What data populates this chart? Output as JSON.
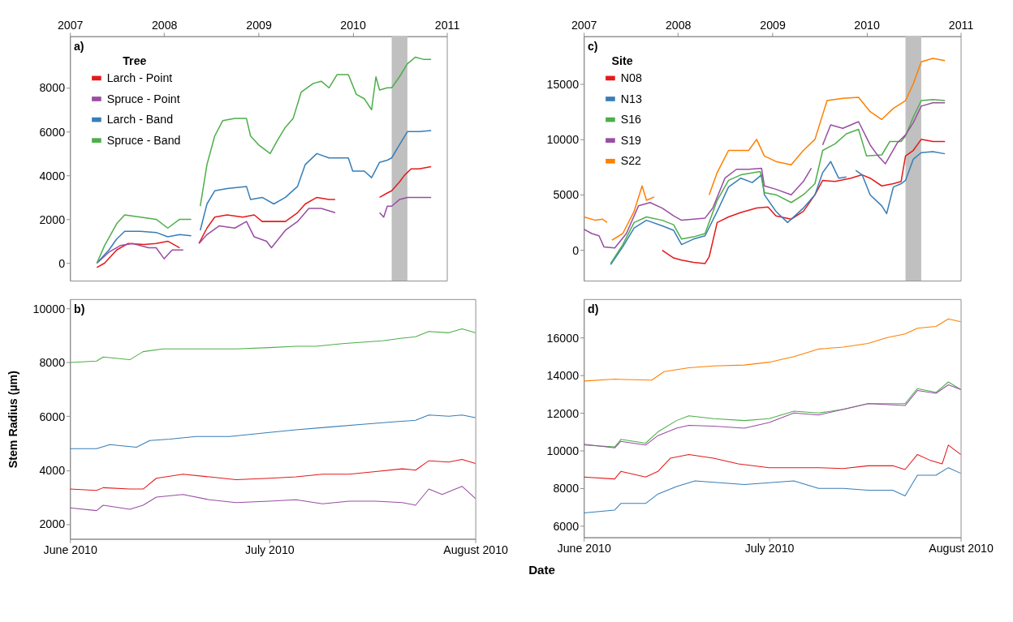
{
  "chart_data": [
    {
      "type": "line",
      "annotations": [
        "a)"
      ],
      "legend_title": "Tree",
      "legend": "top left",
      "grid": false,
      "xlim": [
        "2007",
        "2011"
      ],
      "xticks": [
        "2007",
        "2008",
        "2009",
        "2010",
        "2011"
      ],
      "ylim": [
        -800,
        10350
      ],
      "yticks": [
        0,
        2000,
        4000,
        6000,
        8000
      ],
      "bands": [
        {
          "axis": "x",
          "from": "2010-06-01",
          "to": "2010-08-01",
          "color": "#c0c0c0"
        }
      ],
      "series": [
        {
          "name": "Larch - Point",
          "color": "#e41a1c",
          "x": [
            "2007-04-15",
            "2007-05-15",
            "2007-07-01",
            "2007-08-15",
            "2007-10-15",
            "2007-12-01",
            "2008-01-15",
            "2008-03-01",
            "2008-04-01",
            "2008-05-15",
            "2008-06-15",
            "2008-07-15",
            "2008-09-01",
            "2008-11-01",
            "2008-12-15",
            "2009-01-15",
            "2009-03-01",
            "2009-04-15",
            "2009-06-01",
            "2009-07-01",
            "2009-08-15",
            "2009-10-01",
            "2009-10-25",
            "2010-01-01",
            "2010-04-15",
            "2010-05-15",
            "2010-06-01",
            "2010-07-01",
            "2010-07-20",
            "2010-08-15",
            "2010-09-15",
            "2010-11-01"
          ],
          "values": [
            -200,
            0,
            600,
            900,
            850,
            900,
            1000,
            700,
            null,
            900,
            1600,
            2100,
            2200,
            2100,
            2200,
            1900,
            1900,
            1900,
            2300,
            2700,
            3000,
            2900,
            2900,
            null,
            3000,
            3200,
            3300,
            3700,
            4000,
            4300,
            4300,
            4400
          ]
        },
        {
          "name": "Spruce - Point",
          "color": "#984ea3",
          "x": [
            "2007-04-15",
            "2007-06-01",
            "2007-07-15",
            "2007-09-01",
            "2007-11-01",
            "2007-12-01",
            "2008-01-01",
            "2008-02-01",
            "2008-03-15",
            "2008-04-01",
            "2008-05-15",
            "2008-06-15",
            "2008-08-01",
            "2008-10-01",
            "2008-11-15",
            "2008-12-15",
            "2009-02-01",
            "2009-02-20",
            "2009-04-15",
            "2009-06-01",
            "2009-07-15",
            "2009-09-01",
            "2009-10-25",
            "2010-01-01",
            "2010-04-15",
            "2010-05-01",
            "2010-05-15",
            "2010-06-01",
            "2010-07-01",
            "2010-08-01",
            "2010-09-15",
            "2010-11-01"
          ],
          "values": [
            0,
            500,
            800,
            900,
            700,
            700,
            200,
            600,
            600,
            null,
            900,
            1300,
            1700,
            1600,
            1900,
            1200,
            1000,
            700,
            1500,
            1900,
            2500,
            2500,
            2300,
            null,
            2300,
            2100,
            2600,
            2600,
            2900,
            3000,
            3000,
            3000
          ]
        },
        {
          "name": "Larch - Band",
          "color": "#377eb8",
          "x": [
            "2007-04-15",
            "2007-06-01",
            "2007-07-01",
            "2007-08-01",
            "2007-10-01",
            "2007-12-01",
            "2008-01-15",
            "2008-03-01",
            "2008-04-15",
            "2008-05-01",
            "2008-05-20",
            "2008-06-15",
            "2008-07-15",
            "2008-09-01",
            "2008-11-15",
            "2008-12-01",
            "2009-01-15",
            "2009-03-01",
            "2009-04-15",
            "2009-06-01",
            "2009-07-01",
            "2009-08-15",
            "2009-10-01",
            "2009-12-15",
            "2010-01-01",
            "2010-02-15",
            "2010-03-15",
            "2010-04-15",
            "2010-05-15",
            "2010-06-01",
            "2010-07-01",
            "2010-08-01",
            "2010-09-15",
            "2010-11-01"
          ],
          "values": [
            0,
            600,
            1100,
            1450,
            1450,
            1400,
            1200,
            1300,
            1250,
            null,
            1500,
            2700,
            3300,
            3400,
            3500,
            2900,
            3000,
            2700,
            3000,
            3500,
            4500,
            5000,
            4800,
            4800,
            4200,
            4200,
            3900,
            4600,
            4700,
            4800,
            5400,
            6000,
            6000,
            6050
          ]
        },
        {
          "name": "Spruce - Band",
          "color": "#4daf4a",
          "x": [
            "2007-04-15",
            "2007-05-15",
            "2007-07-01",
            "2007-08-01",
            "2007-10-01",
            "2007-12-01",
            "2008-01-15",
            "2008-03-01",
            "2008-04-15",
            "2008-05-01",
            "2008-05-20",
            "2008-06-15",
            "2008-07-15",
            "2008-08-15",
            "2008-10-01",
            "2008-11-15",
            "2008-12-01",
            "2009-01-01",
            "2009-02-15",
            "2009-03-15",
            "2009-04-15",
            "2009-05-15",
            "2009-06-15",
            "2009-08-01",
            "2009-09-01",
            "2009-10-01",
            "2009-11-01",
            "2009-12-15",
            "2010-01-15",
            "2010-02-15",
            "2010-03-15",
            "2010-04-01",
            "2010-04-15",
            "2010-05-15",
            "2010-06-01",
            "2010-07-01",
            "2010-08-01",
            "2010-09-01",
            "2010-10-01",
            "2010-11-01"
          ],
          "values": [
            0,
            800,
            1800,
            2200,
            2100,
            2000,
            1600,
            2000,
            2000,
            null,
            2600,
            4500,
            5800,
            6500,
            6600,
            6600,
            5800,
            5400,
            5000,
            5600,
            6200,
            6600,
            7800,
            8200,
            8300,
            8000,
            8600,
            8600,
            7700,
            7500,
            7000,
            8500,
            7900,
            8000,
            8000,
            8500,
            9100,
            9400,
            9300,
            9300
          ]
        }
      ]
    },
    {
      "type": "line",
      "annotations": [
        "b)"
      ],
      "ylabel": "Stem Radius (µm)",
      "grid": false,
      "xlim": [
        "2010-06-01",
        "2010-08-01"
      ],
      "xticks": [
        {
          "value": "2010-06-01",
          "label": "June 2010"
        },
        {
          "value": "2010-07-01",
          "label": "July 2010"
        },
        {
          "value": "2010-08-01",
          "label": "August 2010"
        }
      ],
      "ylim": [
        1450,
        10350
      ],
      "yticks": [
        2000,
        4000,
        6000,
        8000,
        10000
      ],
      "series": [
        {
          "color": "#e41a1c",
          "x": [
            "2010-06-01",
            "2010-06-05",
            "2010-06-06",
            "2010-06-10",
            "2010-06-12",
            "2010-06-14",
            "2010-06-18",
            "2010-06-22",
            "2010-06-26",
            "2010-07-01",
            "2010-07-05",
            "2010-07-09",
            "2010-07-13",
            "2010-07-17",
            "2010-07-21",
            "2010-07-23",
            "2010-07-25",
            "2010-07-28",
            "2010-07-30",
            "2010-08-01"
          ],
          "values": [
            3300,
            3250,
            3350,
            3300,
            3300,
            3700,
            3850,
            3750,
            3650,
            3700,
            3750,
            3850,
            3850,
            3950,
            4050,
            4000,
            4350,
            4300,
            4400,
            4250
          ]
        },
        {
          "color": "#984ea3",
          "x": [
            "2010-06-01",
            "2010-06-05",
            "2010-06-06",
            "2010-06-10",
            "2010-06-12",
            "2010-06-14",
            "2010-06-18",
            "2010-06-22",
            "2010-06-26",
            "2010-07-01",
            "2010-07-05",
            "2010-07-09",
            "2010-07-13",
            "2010-07-17",
            "2010-07-21",
            "2010-07-23",
            "2010-07-25",
            "2010-07-27",
            "2010-07-29",
            "2010-07-30",
            "2010-08-01"
          ],
          "values": [
            2600,
            2500,
            2700,
            2550,
            2700,
            3000,
            3100,
            2900,
            2800,
            2850,
            2900,
            2750,
            2850,
            2850,
            2800,
            2700,
            3300,
            3100,
            3300,
            3400,
            2950
          ]
        },
        {
          "color": "#377eb8",
          "x": [
            "2010-06-01",
            "2010-06-05",
            "2010-06-07",
            "2010-06-11",
            "2010-06-13",
            "2010-06-16",
            "2010-06-20",
            "2010-06-25",
            "2010-07-01",
            "2010-07-05",
            "2010-07-10",
            "2010-07-15",
            "2010-07-20",
            "2010-07-23",
            "2010-07-25",
            "2010-07-28",
            "2010-07-30",
            "2010-08-01"
          ],
          "values": [
            4800,
            4800,
            4950,
            4850,
            5100,
            5150,
            5250,
            5250,
            5400,
            5500,
            5600,
            5700,
            5800,
            5850,
            6050,
            6000,
            6050,
            5950
          ]
        },
        {
          "color": "#4daf4a",
          "x": [
            "2010-06-01",
            "2010-06-05",
            "2010-06-06",
            "2010-06-10",
            "2010-06-12",
            "2010-06-15",
            "2010-06-18",
            "2010-06-22",
            "2010-06-26",
            "2010-07-01",
            "2010-07-05",
            "2010-07-08",
            "2010-07-12",
            "2010-07-15",
            "2010-07-18",
            "2010-07-21",
            "2010-07-23",
            "2010-07-25",
            "2010-07-28",
            "2010-07-30",
            "2010-08-01"
          ],
          "values": [
            8000,
            8050,
            8200,
            8100,
            8400,
            8500,
            8500,
            8500,
            8500,
            8550,
            8600,
            8600,
            8700,
            8750,
            8800,
            8900,
            8950,
            9150,
            9100,
            9250,
            9100
          ]
        }
      ]
    },
    {
      "type": "line",
      "annotations": [
        "c)"
      ],
      "legend_title": "Site",
      "legend": "top left",
      "grid": false,
      "xlim": [
        "2007",
        "2011"
      ],
      "xticks": [
        "2007",
        "2008",
        "2009",
        "2010",
        "2011"
      ],
      "ylim": [
        -2750,
        19300
      ],
      "yticks": [
        0,
        5000,
        10000,
        15000
      ],
      "bands": [
        {
          "axis": "x",
          "from": "2010-06-01",
          "to": "2010-08-01",
          "color": "#c0c0c0"
        }
      ],
      "series": [
        {
          "name": "N08",
          "color": "#e41a1c",
          "x": [
            "2007-11-01",
            "2007-12-15",
            "2008-01-15",
            "2008-03-01",
            "2008-04-15",
            "2008-05-01",
            "2008-06-01",
            "2008-07-15",
            "2008-09-01",
            "2008-11-01",
            "2008-12-15",
            "2009-01-15",
            "2009-03-15",
            "2009-05-01",
            "2009-06-15",
            "2009-07-15",
            "2009-09-01",
            "2009-11-01",
            "2009-12-15",
            "2010-01-15",
            "2010-03-01",
            "2010-04-15",
            "2010-05-15",
            "2010-06-01",
            "2010-07-01",
            "2010-08-01",
            "2010-09-15",
            "2010-11-01"
          ],
          "values": [
            0,
            -700,
            -900,
            -1100,
            -1200,
            -600,
            2500,
            3000,
            3400,
            3800,
            3900,
            3100,
            2800,
            3500,
            5000,
            6300,
            6200,
            6500,
            6800,
            6500,
            5800,
            6000,
            6200,
            8500,
            9000,
            10000,
            9800,
            9800
          ]
        },
        {
          "name": "N13",
          "color": "#377eb8",
          "x": [
            "2007-04-15",
            "2007-06-01",
            "2007-07-15",
            "2007-09-01",
            "2007-11-01",
            "2007-12-15",
            "2008-01-15",
            "2008-03-01",
            "2008-04-15",
            "2008-06-01",
            "2008-07-15",
            "2008-09-01",
            "2008-10-15",
            "2008-11-20",
            "2008-12-01",
            "2009-01-15",
            "2009-03-01",
            "2009-05-01",
            "2009-06-15",
            "2009-07-15",
            "2009-08-15",
            "2009-09-15",
            "2009-10-15",
            "2009-11-01",
            "2009-11-20",
            "2009-12-15",
            "2010-01-15",
            "2010-03-01",
            "2010-03-20",
            "2010-04-15",
            "2010-05-15",
            "2010-06-01",
            "2010-07-01",
            "2010-08-01",
            "2010-09-15",
            "2010-11-01"
          ],
          "values": [
            -1300,
            300,
            2000,
            2700,
            2200,
            1800,
            500,
            1000,
            1300,
            3500,
            5700,
            6500,
            6100,
            6800,
            5000,
            3500,
            2500,
            3800,
            5000,
            7000,
            8000,
            6500,
            6600,
            null,
            7200,
            6800,
            5000,
            4000,
            3300,
            5700,
            6000,
            6300,
            8200,
            8800,
            8900,
            8700
          ]
        },
        {
          "name": "S16",
          "color": "#4daf4a",
          "x": [
            "2007-04-15",
            "2007-06-01",
            "2007-07-15",
            "2007-09-01",
            "2007-11-01",
            "2007-12-15",
            "2008-01-15",
            "2008-03-01",
            "2008-04-15",
            "2008-06-01",
            "2008-07-15",
            "2008-09-01",
            "2008-11-15",
            "2008-12-01",
            "2009-01-15",
            "2009-03-15",
            "2009-05-01",
            "2009-06-15",
            "2009-07-15",
            "2009-09-01",
            "2009-10-15",
            "2009-12-01",
            "2010-01-01",
            "2010-03-01",
            "2010-04-01",
            "2010-05-15",
            "2010-06-01",
            "2010-07-01",
            "2010-08-01",
            "2010-09-15",
            "2010-11-01"
          ],
          "values": [
            -1200,
            500,
            2500,
            3000,
            2700,
            2300,
            1000,
            1200,
            1500,
            4500,
            6300,
            6800,
            7100,
            5200,
            5000,
            4300,
            5000,
            6000,
            9000,
            9600,
            10500,
            10900,
            8500,
            8600,
            9800,
            9800,
            10300,
            12000,
            13500,
            13600,
            13500
          ]
        },
        {
          "name": "S19",
          "color": "#984ea3",
          "x": [
            "2007-01-01",
            "2007-02-01",
            "2007-03-01",
            "2007-03-20",
            "2007-05-01",
            "2007-06-15",
            "2007-08-01",
            "2007-09-15",
            "2007-11-01",
            "2007-12-15",
            "2008-01-15",
            "2008-03-01",
            "2008-04-15",
            "2008-05-15",
            "2008-07-01",
            "2008-08-15",
            "2008-10-01",
            "2008-11-20",
            "2008-12-01",
            "2009-01-15",
            "2009-03-15",
            "2009-05-01",
            "2009-06-01",
            "2009-06-15",
            "2009-07-15",
            "2009-08-15",
            "2009-10-01",
            "2009-12-01",
            "2010-01-15",
            "2010-02-15",
            "2010-03-15",
            "2010-05-01",
            "2010-06-01",
            "2010-07-01",
            "2010-08-01",
            "2010-09-15",
            "2010-11-01"
          ],
          "values": [
            1900,
            1500,
            1300,
            300,
            200,
            1500,
            4000,
            4300,
            3800,
            3100,
            2700,
            2800,
            2900,
            3800,
            6500,
            7300,
            7300,
            7400,
            5800,
            5500,
            5000,
            6200,
            7400,
            null,
            9500,
            11300,
            11000,
            11600,
            9500,
            8500,
            7800,
            9700,
            10400,
            11500,
            13000,
            13300,
            13300
          ]
        },
        {
          "name": "S22",
          "color": "#ff7f00",
          "x": [
            "2007-01-01",
            "2007-02-15",
            "2007-03-15",
            "2007-04-01",
            "2007-04-15",
            "2007-04-20",
            "2007-06-01",
            "2007-07-15",
            "2007-08-15",
            "2007-09-01",
            "2007-10-01",
            "2007-11-01",
            "2008-05-01",
            "2008-06-01",
            "2008-07-15",
            "2008-09-01",
            "2008-10-01",
            "2008-11-01",
            "2008-12-01",
            "2009-01-15",
            "2009-03-15",
            "2009-05-01",
            "2009-06-15",
            "2009-08-01",
            "2009-10-01",
            "2009-12-01",
            "2010-01-15",
            "2010-03-01",
            "2010-04-15",
            "2010-06-01",
            "2010-07-01",
            "2010-08-01",
            "2010-09-15",
            "2010-11-01"
          ],
          "values": [
            3000,
            2700,
            2800,
            2500,
            null,
            900,
            1500,
            3500,
            5800,
            4500,
            4800,
            null,
            5000,
            7000,
            9000,
            9000,
            9000,
            10000,
            8500,
            8000,
            7700,
            9000,
            10000,
            13500,
            13700,
            13800,
            12500,
            11800,
            12800,
            13500,
            15000,
            17000,
            17300,
            17100
          ]
        }
      ]
    },
    {
      "type": "line",
      "annotations": [
        "d)"
      ],
      "xlabel": "Date",
      "grid": false,
      "xlim": [
        "2010-06-01",
        "2010-08-01"
      ],
      "xticks": [
        {
          "value": "2010-06-01",
          "label": "June 2010"
        },
        {
          "value": "2010-07-01",
          "label": "July 2010"
        },
        {
          "value": "2010-08-01",
          "label": "August 2010"
        }
      ],
      "ylim": [
        5400,
        18050
      ],
      "yticks": [
        6000,
        8000,
        10000,
        12000,
        14000,
        16000
      ],
      "series": [
        {
          "color": "#e41a1c",
          "x": [
            "2010-06-01",
            "2010-06-06",
            "2010-06-07",
            "2010-06-11",
            "2010-06-13",
            "2010-06-15",
            "2010-06-18",
            "2010-06-22",
            "2010-06-26",
            "2010-07-01",
            "2010-07-05",
            "2010-07-09",
            "2010-07-13",
            "2010-07-17",
            "2010-07-21",
            "2010-07-23",
            "2010-07-25",
            "2010-07-27",
            "2010-07-29",
            "2010-07-30",
            "2010-08-01"
          ],
          "values": [
            8600,
            8500,
            8900,
            8600,
            8900,
            9600,
            9800,
            9600,
            9300,
            9100,
            9100,
            9100,
            9050,
            9200,
            9200,
            9000,
            9800,
            9500,
            9300,
            10300,
            9800
          ]
        },
        {
          "color": "#377eb8",
          "x": [
            "2010-06-01",
            "2010-06-06",
            "2010-06-07",
            "2010-06-11",
            "2010-06-13",
            "2010-06-16",
            "2010-06-19",
            "2010-06-23",
            "2010-06-27",
            "2010-07-01",
            "2010-07-05",
            "2010-07-09",
            "2010-07-13",
            "2010-07-17",
            "2010-07-21",
            "2010-07-23",
            "2010-07-25",
            "2010-07-28",
            "2010-07-30",
            "2010-08-01"
          ],
          "values": [
            6700,
            6850,
            7200,
            7200,
            7700,
            8100,
            8400,
            8300,
            8200,
            8300,
            8400,
            8000,
            8000,
            7900,
            7900,
            7600,
            8700,
            8700,
            9100,
            8800
          ]
        },
        {
          "color": "#4daf4a",
          "x": [
            "2010-06-01",
            "2010-06-06",
            "2010-06-07",
            "2010-06-11",
            "2010-06-13",
            "2010-06-16",
            "2010-06-18",
            "2010-06-22",
            "2010-06-27",
            "2010-07-01",
            "2010-07-05",
            "2010-07-09",
            "2010-07-13",
            "2010-07-17",
            "2010-07-23",
            "2010-07-25",
            "2010-07-28",
            "2010-07-30",
            "2010-08-01"
          ],
          "values": [
            10300,
            10200,
            10600,
            10400,
            11000,
            11600,
            11850,
            11700,
            11600,
            11700,
            12100,
            12000,
            12200,
            12500,
            12500,
            13300,
            13100,
            13650,
            13250
          ]
        },
        {
          "color": "#984ea3",
          "x": [
            "2010-06-01",
            "2010-06-06",
            "2010-06-07",
            "2010-06-11",
            "2010-06-13",
            "2010-06-16",
            "2010-06-18",
            "2010-06-22",
            "2010-06-27",
            "2010-07-01",
            "2010-07-05",
            "2010-07-09",
            "2010-07-13",
            "2010-07-17",
            "2010-07-23",
            "2010-07-25",
            "2010-07-28",
            "2010-07-30",
            "2010-08-01"
          ],
          "values": [
            10350,
            10150,
            10500,
            10300,
            10800,
            11200,
            11350,
            11300,
            11200,
            11500,
            12000,
            11900,
            12200,
            12500,
            12400,
            13200,
            13050,
            13500,
            13250
          ]
        },
        {
          "color": "#ff7f00",
          "x": [
            "2010-06-01",
            "2010-06-06",
            "2010-06-12",
            "2010-06-14",
            "2010-06-18",
            "2010-06-22",
            "2010-06-27",
            "2010-07-01",
            "2010-07-05",
            "2010-07-09",
            "2010-07-13",
            "2010-07-17",
            "2010-07-20",
            "2010-07-23",
            "2010-07-25",
            "2010-07-28",
            "2010-07-30",
            "2010-08-01"
          ],
          "values": [
            13700,
            13800,
            13750,
            14200,
            14400,
            14500,
            14550,
            14700,
            15000,
            15400,
            15500,
            15700,
            16000,
            16200,
            16500,
            16600,
            17000,
            16850
          ]
        }
      ]
    }
  ]
}
